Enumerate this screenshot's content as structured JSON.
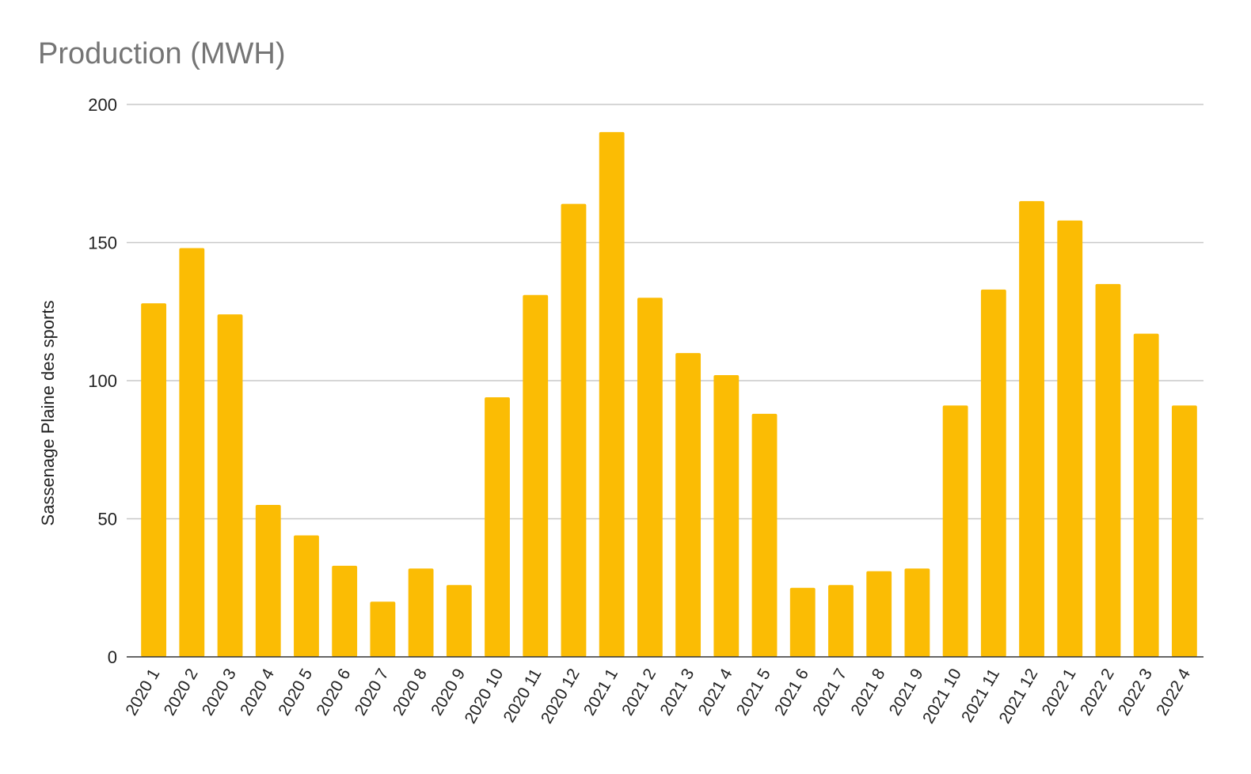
{
  "chart_data": {
    "type": "bar",
    "title": "Production (MWH)",
    "xlabel": "",
    "ylabel": "Sassenage Plaine des sports",
    "ylim": [
      0,
      200
    ],
    "yticks": [
      "0",
      "50",
      "100",
      "150",
      "200"
    ],
    "grid": true,
    "legend": "none",
    "bar_color": "#FBBC04",
    "categories": [
      "2020 1",
      "2020 2",
      "2020 3",
      "2020 4",
      "2020 5",
      "2020 6",
      "2020 7",
      "2020 8",
      "2020 9",
      "2020 10",
      "2020 11",
      "2020 12",
      "2021 1",
      "2021 2",
      "2021 3",
      "2021 4",
      "2021 5",
      "2021 6",
      "2021 7",
      "2021 8",
      "2021 9",
      "2021 10",
      "2021 11",
      "2021 12",
      "2022 1",
      "2022 2",
      "2022 3",
      "2022 4"
    ],
    "values": [
      128,
      148,
      124,
      55,
      44,
      33,
      20,
      32,
      26,
      94,
      131,
      164,
      190,
      130,
      110,
      102,
      88,
      25,
      26,
      31,
      32,
      91,
      133,
      165,
      158,
      135,
      117,
      91
    ]
  }
}
